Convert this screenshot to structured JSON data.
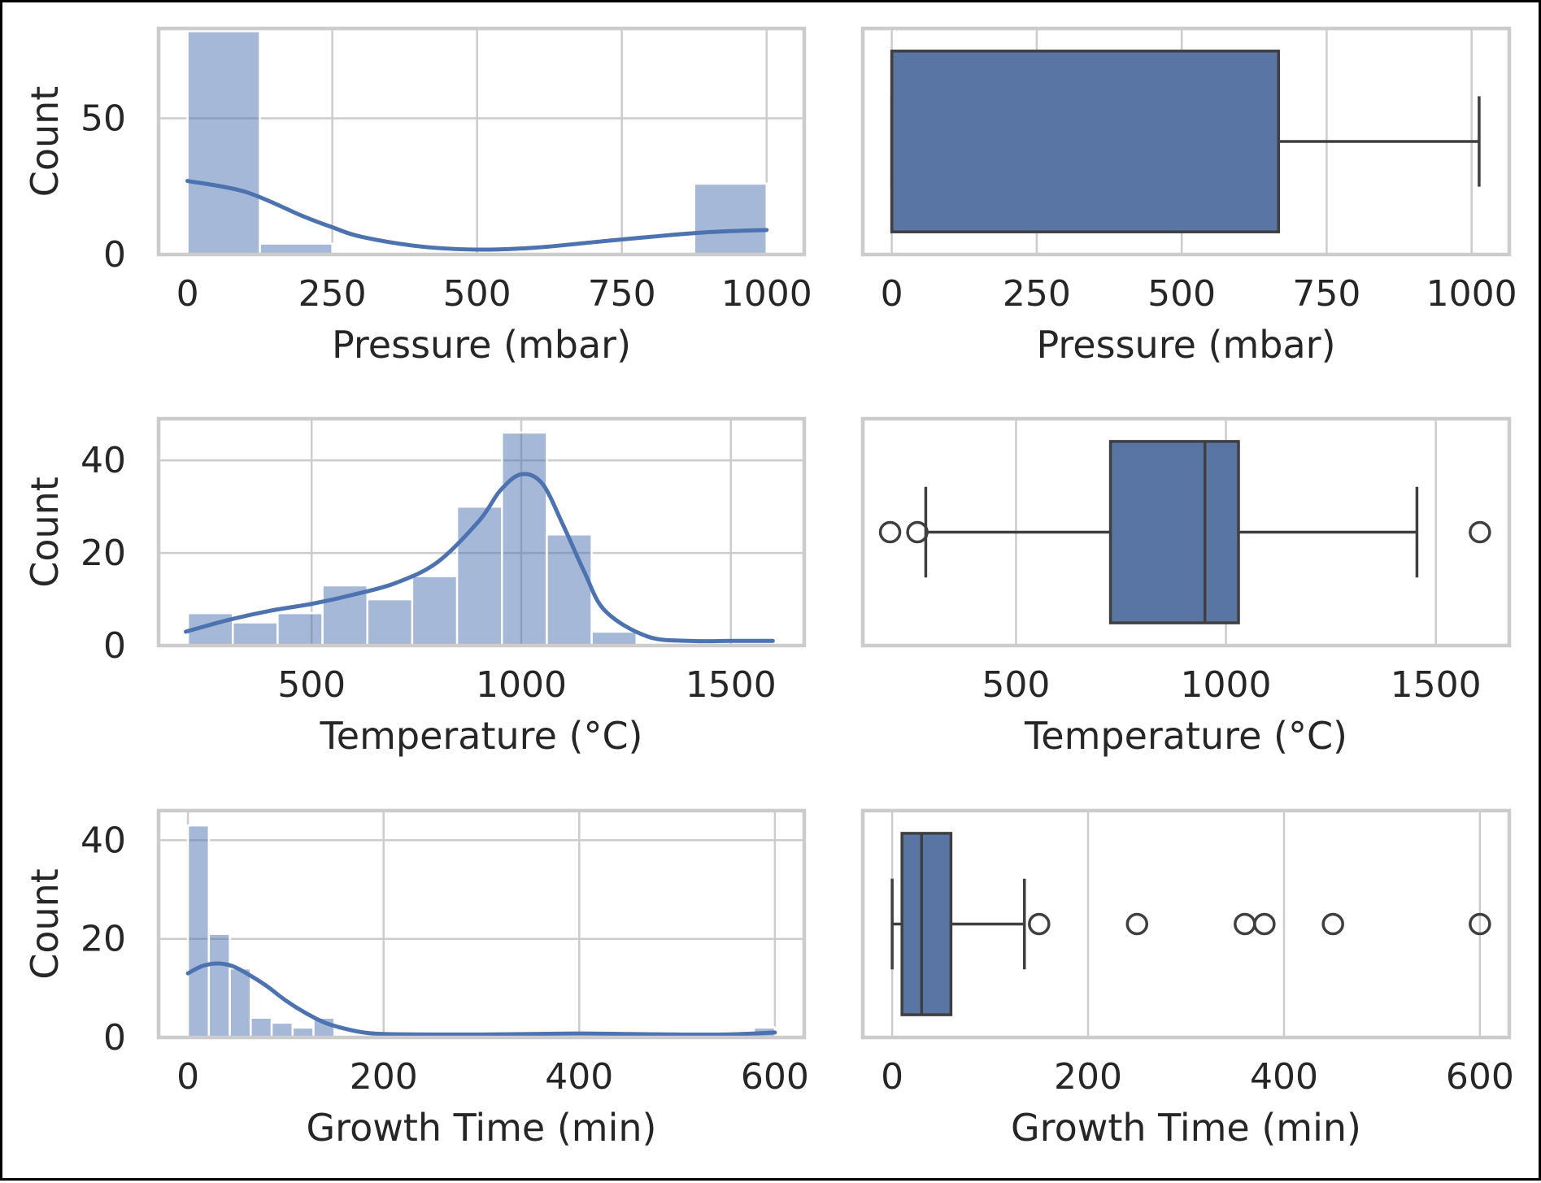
{
  "colors": {
    "bar_fill": "#4c72b0",
    "box_fill": "#5975a4",
    "box_edge": "#3f3f3f",
    "grid": "#cccccc",
    "frame": "#000000",
    "text": "#262626"
  },
  "chart_data": [
    {
      "id": "pressure-hist",
      "type": "bar",
      "subtype": "histogram_with_kde",
      "xlabel": "Pressure (mbar)",
      "ylabel": "Count",
      "xlim": [
        -50,
        1065
      ],
      "ylim": [
        0,
        83
      ],
      "xticks": [
        "0",
        "250",
        "500",
        "750",
        "1000"
      ],
      "xtick_values": [
        0,
        250,
        500,
        750,
        1000
      ],
      "yticks": [
        "0",
        "50"
      ],
      "ytick_values": [
        0,
        50
      ],
      "bins": [
        {
          "x0": 0,
          "x1": 125,
          "count": 82
        },
        {
          "x0": 125,
          "x1": 250,
          "count": 4
        },
        {
          "x0": 250,
          "x1": 375,
          "count": 0
        },
        {
          "x0": 375,
          "x1": 500,
          "count": 0
        },
        {
          "x0": 500,
          "x1": 625,
          "count": 0
        },
        {
          "x0": 625,
          "x1": 750,
          "count": 0
        },
        {
          "x0": 750,
          "x1": 875,
          "count": 0
        },
        {
          "x0": 875,
          "x1": 1000,
          "count": 26
        }
      ],
      "kde": {
        "x": [
          0,
          100,
          200,
          250,
          300,
          400,
          500,
          600,
          700,
          800,
          900,
          1000
        ],
        "y": [
          27,
          23,
          14,
          10,
          6.5,
          3,
          1.8,
          2.5,
          4.5,
          6.5,
          8.2,
          9
        ]
      }
    },
    {
      "id": "pressure-box",
      "type": "box",
      "xlabel": "Pressure (mbar)",
      "xlim": [
        -50,
        1065
      ],
      "xticks": [
        "0",
        "250",
        "500",
        "750",
        "1000"
      ],
      "xtick_values": [
        0,
        250,
        500,
        750,
        1000
      ],
      "whisker_low": 0,
      "q1": 0,
      "median": 0,
      "q3": 667,
      "whisker_high": 1013,
      "outliers": []
    },
    {
      "id": "temperature-hist",
      "type": "bar",
      "subtype": "histogram_with_kde",
      "xlabel": "Temperature (°C)",
      "ylabel": "Count",
      "xlim": [
        135,
        1675
      ],
      "ylim": [
        0,
        49
      ],
      "xticks": [
        "500",
        "1000",
        "1500"
      ],
      "xtick_values": [
        500,
        1000,
        1500
      ],
      "yticks": [
        "0",
        "20",
        "40"
      ],
      "ytick_values": [
        0,
        20,
        40
      ],
      "bins": [
        {
          "x0": 205,
          "x1": 312,
          "count": 7
        },
        {
          "x0": 312,
          "x1": 419,
          "count": 5
        },
        {
          "x0": 419,
          "x1": 526,
          "count": 7
        },
        {
          "x0": 526,
          "x1": 633,
          "count": 13
        },
        {
          "x0": 633,
          "x1": 740,
          "count": 10
        },
        {
          "x0": 740,
          "x1": 847,
          "count": 15
        },
        {
          "x0": 847,
          "x1": 954,
          "count": 30
        },
        {
          "x0": 954,
          "x1": 1061,
          "count": 46
        },
        {
          "x0": 1061,
          "x1": 1168,
          "count": 24
        },
        {
          "x0": 1168,
          "x1": 1275,
          "count": 3
        }
      ],
      "kde": {
        "x": [
          200,
          300,
          400,
          500,
          600,
          700,
          800,
          900,
          950,
          1000,
          1050,
          1100,
          1150,
          1200,
          1300,
          1400,
          1500,
          1600
        ],
        "y": [
          3,
          5.5,
          7.5,
          9,
          11,
          13.5,
          18,
          27,
          33.5,
          37,
          35,
          26,
          16,
          7.5,
          2,
          1,
          1,
          1
        ]
      }
    },
    {
      "id": "temperature-box",
      "type": "box",
      "xlabel": "Temperature (°C)",
      "xlim": [
        135,
        1675
      ],
      "xticks": [
        "500",
        "1000",
        "1500"
      ],
      "xtick_values": [
        500,
        1000,
        1500
      ],
      "whisker_low": 285,
      "q1": 725,
      "median": 950,
      "q3": 1030,
      "whisker_high": 1455,
      "outliers": [
        200,
        265,
        1605
      ]
    },
    {
      "id": "growth-hist",
      "type": "bar",
      "subtype": "histogram_with_kde",
      "xlabel": "Growth Time (min)",
      "ylabel": "Count",
      "xlim": [
        -30,
        630
      ],
      "ylim": [
        0,
        46
      ],
      "xticks": [
        "0",
        "200",
        "400",
        "600"
      ],
      "xtick_values": [
        0,
        200,
        400,
        600
      ],
      "yticks": [
        "0",
        "20",
        "40"
      ],
      "ytick_values": [
        0,
        20,
        40
      ],
      "bins": [
        {
          "x0": 0,
          "x1": 21.4,
          "count": 43
        },
        {
          "x0": 21.4,
          "x1": 42.8,
          "count": 21
        },
        {
          "x0": 42.8,
          "x1": 64.2,
          "count": 14
        },
        {
          "x0": 64.2,
          "x1": 85.6,
          "count": 4
        },
        {
          "x0": 85.6,
          "x1": 107,
          "count": 3
        },
        {
          "x0": 107,
          "x1": 128.4,
          "count": 2
        },
        {
          "x0": 128.4,
          "x1": 149.8,
          "count": 4
        },
        {
          "x0": 578.6,
          "x1": 600,
          "count": 2
        }
      ],
      "kde": {
        "x": [
          0,
          15,
          30,
          45,
          60,
          80,
          100,
          120,
          140,
          160,
          180,
          200,
          250,
          300,
          350,
          400,
          450,
          500,
          550,
          600
        ],
        "y": [
          13,
          14.5,
          15,
          14.5,
          13,
          10.5,
          7.5,
          5,
          3,
          1.8,
          1,
          0.7,
          0.6,
          0.6,
          0.7,
          0.8,
          0.7,
          0.6,
          0.6,
          1
        ]
      }
    },
    {
      "id": "growth-box",
      "type": "box",
      "xlabel": "Growth Time (min)",
      "xlim": [
        -30,
        630
      ],
      "xticks": [
        "0",
        "200",
        "400",
        "600"
      ],
      "xtick_values": [
        0,
        200,
        400,
        600
      ],
      "whisker_low": 0,
      "q1": 10,
      "median": 30,
      "q3": 60,
      "whisker_high": 135,
      "outliers": [
        150,
        250,
        360,
        380,
        450,
        600
      ]
    }
  ]
}
